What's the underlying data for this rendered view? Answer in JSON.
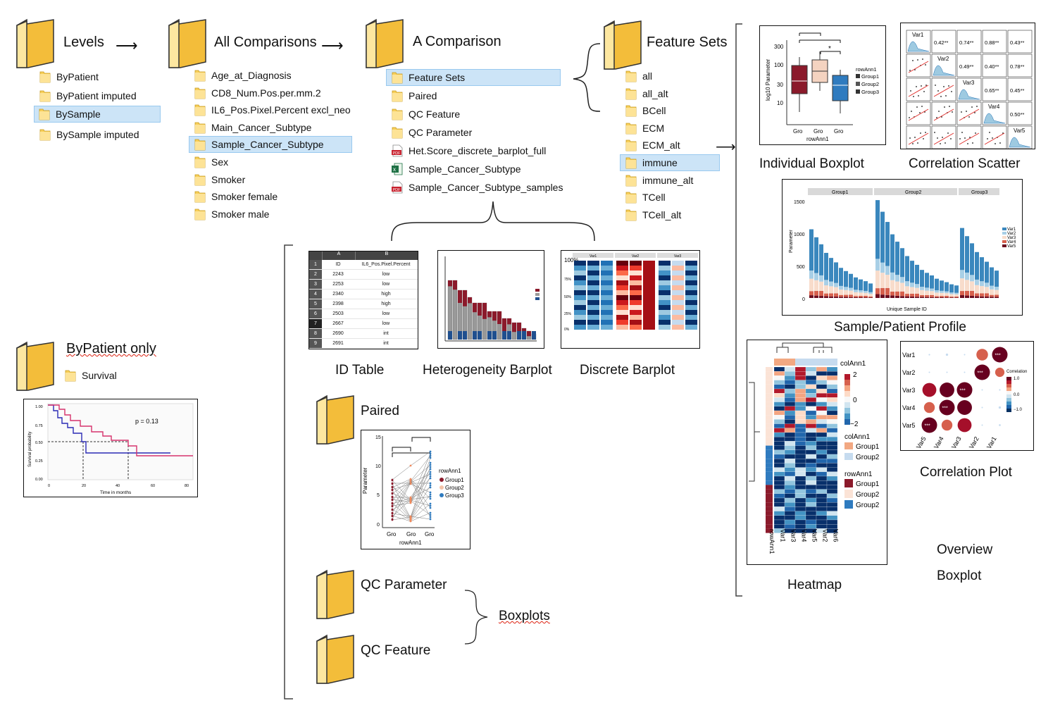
{
  "levels": {
    "title": "Levels",
    "items": [
      {
        "label": "ByPatient",
        "selected": false
      },
      {
        "label": "ByPatient imputed",
        "selected": false
      },
      {
        "label": "BySample",
        "selected": true
      },
      {
        "label": "BySample imputed",
        "selected": false
      }
    ]
  },
  "all_comparisons": {
    "title": "All Comparisons",
    "items": [
      {
        "label": "Age_at_Diagnosis",
        "selected": false
      },
      {
        "label": "CD8_Num.Pos.per.mm.2",
        "selected": false
      },
      {
        "label": "IL6_Pos.Pixel.Percent excl_neo",
        "selected": false
      },
      {
        "label": "Main_Cancer_Subtype",
        "selected": false
      },
      {
        "label": "Sample_Cancer_Subtype",
        "selected": true
      },
      {
        "label": "Sex",
        "selected": false
      },
      {
        "label": "Smoker",
        "selected": false
      },
      {
        "label": "Smoker female",
        "selected": false
      },
      {
        "label": "Smoker male",
        "selected": false
      }
    ]
  },
  "a_comparison": {
    "title": "A Comparison",
    "items": [
      {
        "label": "Feature Sets",
        "type": "folder",
        "selected": true
      },
      {
        "label": "Paired",
        "type": "folder",
        "selected": false
      },
      {
        "label": "QC Feature",
        "type": "folder",
        "selected": false
      },
      {
        "label": "QC Parameter",
        "type": "folder",
        "selected": false
      },
      {
        "label": "Het.Score_discrete_barplot_full",
        "type": "pdf",
        "selected": false
      },
      {
        "label": "Sample_Cancer_Subtype",
        "type": "excel",
        "selected": false
      },
      {
        "label": "Sample_Cancer_Subtype_samples",
        "type": "pdf",
        "selected": false
      }
    ]
  },
  "feature_sets": {
    "title": "Feature Sets",
    "items": [
      {
        "label": "all",
        "selected": false
      },
      {
        "label": "all_alt",
        "selected": false
      },
      {
        "label": "BCell",
        "selected": false
      },
      {
        "label": "ECM",
        "selected": false
      },
      {
        "label": "ECM_alt",
        "selected": false
      },
      {
        "label": "immune",
        "selected": true
      },
      {
        "label": "immune_alt",
        "selected": false
      },
      {
        "label": "TCell",
        "selected": false
      },
      {
        "label": "TCell_alt",
        "selected": false
      }
    ]
  },
  "bypatient_only": {
    "title": "ByPatient only",
    "item": "Survival"
  },
  "survival_plot": {
    "pvalue": "p = 0.13",
    "ylabel": "Survival probability",
    "xlabel": "Time in months",
    "yticks": [
      "1.00",
      "0.75",
      "0.50",
      "0.25",
      "0.00"
    ],
    "xticks": [
      "0",
      "20",
      "40",
      "60",
      "80"
    ]
  },
  "captions": {
    "id_table": "ID Table",
    "heterogeneity": "Heterogeneity Barplot",
    "discrete": "Discrete Barplot",
    "paired": "Paired",
    "qc_parameter": "QC Parameter",
    "qc_feature": "QC Feature",
    "boxplots": "Boxplots",
    "individual_boxplot": "Individual Boxplot",
    "correlation_scatter": "Correlation Scatter",
    "sample_profile": "Sample/Patient Profile",
    "heatmap": "Heatmap",
    "correlation_plot": "Correlation Plot",
    "overview": "Overview",
    "boxplot": "Boxplot"
  },
  "id_table": {
    "col_a": "A",
    "col_b": "B",
    "rows": [
      [
        "1",
        "ID",
        "IL6_Pos.Pixel.Percent"
      ],
      [
        "2",
        "2243",
        "low"
      ],
      [
        "3",
        "2253",
        "low"
      ],
      [
        "4",
        "2340",
        "high"
      ],
      [
        "5",
        "2398",
        "high"
      ],
      [
        "6",
        "2503",
        "low"
      ],
      [
        "7",
        "2667",
        "low"
      ],
      [
        "8",
        "2690",
        "int"
      ],
      [
        "9",
        "2691",
        "int"
      ]
    ]
  },
  "individual_boxplot": {
    "ylabel": "log10 Parameter",
    "xlabel": "rowAnn1",
    "xticks": [
      "Gro",
      "Gro",
      "Gro"
    ],
    "yticks": [
      "300",
      "100",
      "30",
      "10"
    ],
    "star": "*",
    "legend_title": "rowAnn1",
    "legend": [
      "Group1",
      "Group2",
      "Group3"
    ]
  },
  "paired_plot": {
    "ylabel": "Parameter",
    "xlabel": "rowAnn1",
    "xticks": [
      "Gro",
      "Gro",
      "Gro"
    ],
    "yticks": [
      "15",
      "10",
      "5",
      "0"
    ],
    "legend_title": "rowAnn1",
    "legend": [
      "Group1",
      "Group2",
      "Group3"
    ]
  },
  "correlation_scatter": {
    "vars": [
      "Var1",
      "Var2",
      "Var3",
      "Var4",
      "Var5"
    ],
    "coefs": [
      "0.42**",
      "0.74**",
      "0.88**",
      "0.43**",
      "0.49**",
      "0.40**",
      "0.78**",
      "0.65**",
      "0.45**",
      "0.50**"
    ]
  },
  "sample_profile": {
    "facets": [
      "Group1",
      "Group2",
      "Group3"
    ],
    "ylabel": "Parameter",
    "xlabel": "Unique Sample ID",
    "yticks": [
      "1500",
      "1000",
      "500",
      "0"
    ],
    "legend": [
      "Var1",
      "Var2",
      "Var3",
      "Var4",
      "Var5"
    ]
  },
  "heatmap": {
    "col_ann": "colAnn1",
    "row_ann": "rowAnn1",
    "scale": [
      "2",
      "0",
      "−2"
    ],
    "col_legend": [
      "Group1",
      "Group2"
    ],
    "row_legend": [
      "Group1",
      "Group2",
      "Group2"
    ],
    "cols": [
      "rowAnn1",
      "Var1",
      "Var3",
      "Var4",
      "Var5",
      "Var2",
      "Var6"
    ]
  },
  "correlation_plot": {
    "rows": [
      "Var1",
      "Var2",
      "Var3",
      "Var4",
      "Var5"
    ],
    "cols": [
      "Var5",
      "Var4",
      "Var3",
      "Var2",
      "Var1"
    ],
    "legend_title": "Correlation",
    "legend_ticks": [
      "1.0",
      "0.0",
      "−1.0"
    ],
    "stars": "***"
  },
  "discrete_barplot": {
    "facets": [
      "Var1",
      "Var2",
      "Var3"
    ],
    "yticks": [
      "100%",
      "75%",
      "50%",
      "25%",
      "0%"
    ]
  },
  "colors": {
    "folder": "#f5c242",
    "folder_light": "#fde396",
    "selection": "#cce4f7",
    "red": "#8b1a2b",
    "blue": "#2f7bbf",
    "salmon": "#f4c3a8"
  }
}
